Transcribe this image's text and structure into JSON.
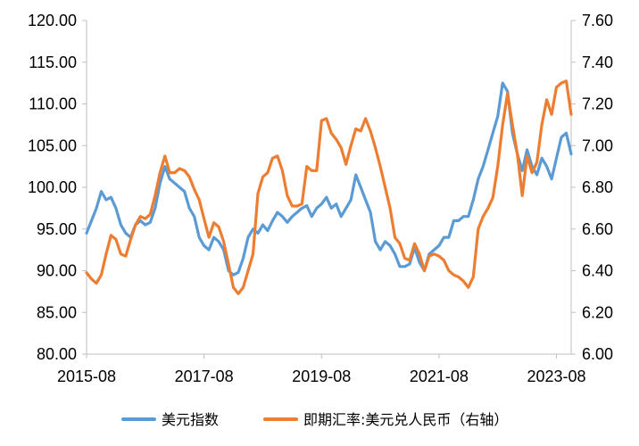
{
  "chart_data": {
    "type": "line",
    "title": "",
    "xlabel": "",
    "ylabel": "",
    "x_tick_labels": [
      "2015-08",
      "2017-08",
      "2019-08",
      "2021-08",
      "2023-08"
    ],
    "y_left": {
      "lim": [
        80,
        120
      ],
      "tick_labels": [
        "80.00",
        "85.00",
        "90.00",
        "95.00",
        "100.00",
        "105.00",
        "110.00",
        "115.00",
        "120.00"
      ]
    },
    "y_right": {
      "lim": [
        6.0,
        7.6
      ],
      "tick_labels": [
        "6.00",
        "6.20",
        "6.40",
        "6.60",
        "6.80",
        "7.00",
        "7.20",
        "7.40",
        "7.60"
      ]
    },
    "grid": false,
    "legend_position": "bottom",
    "series": [
      {
        "name": "美元指数",
        "axis": "left",
        "color": "#5B9BD5",
        "points": [
          [
            "2015-08",
            94.5
          ],
          [
            "2015-09",
            96.0
          ],
          [
            "2015-10",
            97.5
          ],
          [
            "2015-11",
            99.5
          ],
          [
            "2015-12",
            98.5
          ],
          [
            "2016-01",
            98.8
          ],
          [
            "2016-02",
            97.5
          ],
          [
            "2016-03",
            95.5
          ],
          [
            "2016-04",
            94.5
          ],
          [
            "2016-05",
            94.0
          ],
          [
            "2016-06",
            95.5
          ],
          [
            "2016-07",
            96.0
          ],
          [
            "2016-08",
            95.5
          ],
          [
            "2016-09",
            95.8
          ],
          [
            "2016-10",
            97.5
          ],
          [
            "2016-11",
            100.5
          ],
          [
            "2016-12",
            102.5
          ],
          [
            "2017-01",
            101.0
          ],
          [
            "2017-02",
            100.5
          ],
          [
            "2017-03",
            100.0
          ],
          [
            "2017-04",
            99.5
          ],
          [
            "2017-05",
            97.5
          ],
          [
            "2017-06",
            96.5
          ],
          [
            "2017-07",
            94.0
          ],
          [
            "2017-08",
            93.0
          ],
          [
            "2017-09",
            92.5
          ],
          [
            "2017-10",
            94.0
          ],
          [
            "2017-11",
            93.5
          ],
          [
            "2017-12",
            92.5
          ],
          [
            "2018-01",
            90.0
          ],
          [
            "2018-02",
            89.5
          ],
          [
            "2018-03",
            89.8
          ],
          [
            "2018-04",
            91.5
          ],
          [
            "2018-05",
            94.0
          ],
          [
            "2018-06",
            95.0
          ],
          [
            "2018-07",
            94.5
          ],
          [
            "2018-08",
            95.5
          ],
          [
            "2018-09",
            94.8
          ],
          [
            "2018-10",
            96.0
          ],
          [
            "2018-11",
            97.0
          ],
          [
            "2018-12",
            96.5
          ],
          [
            "2019-01",
            95.8
          ],
          [
            "2019-02",
            96.5
          ],
          [
            "2019-03",
            97.0
          ],
          [
            "2019-04",
            97.5
          ],
          [
            "2019-05",
            97.8
          ],
          [
            "2019-06",
            96.5
          ],
          [
            "2019-07",
            97.5
          ],
          [
            "2019-08",
            98.0
          ],
          [
            "2019-09",
            98.8
          ],
          [
            "2019-10",
            97.5
          ],
          [
            "2019-11",
            98.0
          ],
          [
            "2019-12",
            96.5
          ],
          [
            "2020-01",
            97.5
          ],
          [
            "2020-02",
            98.5
          ],
          [
            "2020-03",
            101.5
          ],
          [
            "2020-04",
            100.0
          ],
          [
            "2020-05",
            98.5
          ],
          [
            "2020-06",
            97.0
          ],
          [
            "2020-07",
            93.5
          ],
          [
            "2020-08",
            92.5
          ],
          [
            "2020-09",
            93.5
          ],
          [
            "2020-10",
            93.0
          ],
          [
            "2020-11",
            92.0
          ],
          [
            "2020-12",
            90.5
          ],
          [
            "2021-01",
            90.5
          ],
          [
            "2021-02",
            90.8
          ],
          [
            "2021-03",
            92.8
          ],
          [
            "2021-04",
            91.0
          ],
          [
            "2021-05",
            90.0
          ],
          [
            "2021-06",
            92.0
          ],
          [
            "2021-07",
            92.5
          ],
          [
            "2021-08",
            93.0
          ],
          [
            "2021-09",
            94.0
          ],
          [
            "2021-10",
            94.0
          ],
          [
            "2021-11",
            96.0
          ],
          [
            "2021-12",
            96.0
          ],
          [
            "2022-01",
            96.5
          ],
          [
            "2022-02",
            96.5
          ],
          [
            "2022-03",
            98.5
          ],
          [
            "2022-04",
            101.0
          ],
          [
            "2022-05",
            102.5
          ],
          [
            "2022-06",
            104.5
          ],
          [
            "2022-07",
            106.5
          ],
          [
            "2022-08",
            108.5
          ],
          [
            "2022-09",
            112.5
          ],
          [
            "2022-10",
            111.5
          ],
          [
            "2022-11",
            106.5
          ],
          [
            "2022-12",
            104.0
          ],
          [
            "2023-01",
            102.0
          ],
          [
            "2023-02",
            104.5
          ],
          [
            "2023-03",
            102.5
          ],
          [
            "2023-04",
            101.5
          ],
          [
            "2023-05",
            103.5
          ],
          [
            "2023-06",
            102.5
          ],
          [
            "2023-07",
            101.0
          ],
          [
            "2023-08",
            103.5
          ],
          [
            "2023-09",
            106.0
          ],
          [
            "2023-10",
            106.5
          ],
          [
            "2023-11",
            104.0
          ]
        ]
      },
      {
        "name": "即期汇率:美元兑人民币（右轴）",
        "axis": "right",
        "color": "#ED7D31",
        "points": [
          [
            "2015-08",
            6.39
          ],
          [
            "2015-09",
            6.36
          ],
          [
            "2015-10",
            6.34
          ],
          [
            "2015-11",
            6.38
          ],
          [
            "2015-12",
            6.48
          ],
          [
            "2016-01",
            6.57
          ],
          [
            "2016-02",
            6.55
          ],
          [
            "2016-03",
            6.48
          ],
          [
            "2016-04",
            6.47
          ],
          [
            "2016-05",
            6.55
          ],
          [
            "2016-06",
            6.62
          ],
          [
            "2016-07",
            6.66
          ],
          [
            "2016-08",
            6.65
          ],
          [
            "2016-09",
            6.67
          ],
          [
            "2016-10",
            6.76
          ],
          [
            "2016-11",
            6.87
          ],
          [
            "2016-12",
            6.95
          ],
          [
            "2017-01",
            6.87
          ],
          [
            "2017-02",
            6.87
          ],
          [
            "2017-03",
            6.89
          ],
          [
            "2017-04",
            6.88
          ],
          [
            "2017-05",
            6.85
          ],
          [
            "2017-06",
            6.79
          ],
          [
            "2017-07",
            6.74
          ],
          [
            "2017-08",
            6.65
          ],
          [
            "2017-09",
            6.56
          ],
          [
            "2017-10",
            6.63
          ],
          [
            "2017-11",
            6.61
          ],
          [
            "2017-12",
            6.54
          ],
          [
            "2018-01",
            6.43
          ],
          [
            "2018-02",
            6.32
          ],
          [
            "2018-03",
            6.29
          ],
          [
            "2018-04",
            6.32
          ],
          [
            "2018-05",
            6.4
          ],
          [
            "2018-06",
            6.48
          ],
          [
            "2018-07",
            6.77
          ],
          [
            "2018-08",
            6.85
          ],
          [
            "2018-09",
            6.87
          ],
          [
            "2018-10",
            6.94
          ],
          [
            "2018-11",
            6.95
          ],
          [
            "2018-12",
            6.88
          ],
          [
            "2019-01",
            6.76
          ],
          [
            "2019-02",
            6.71
          ],
          [
            "2019-03",
            6.71
          ],
          [
            "2019-04",
            6.72
          ],
          [
            "2019-05",
            6.9
          ],
          [
            "2019-06",
            6.88
          ],
          [
            "2019-07",
            6.88
          ],
          [
            "2019-08",
            7.12
          ],
          [
            "2019-09",
            7.13
          ],
          [
            "2019-10",
            7.06
          ],
          [
            "2019-11",
            7.03
          ],
          [
            "2019-12",
            6.99
          ],
          [
            "2020-01",
            6.91
          ],
          [
            "2020-02",
            7.0
          ],
          [
            "2020-03",
            7.08
          ],
          [
            "2020-04",
            7.07
          ],
          [
            "2020-05",
            7.13
          ],
          [
            "2020-06",
            7.07
          ],
          [
            "2020-07",
            6.99
          ],
          [
            "2020-08",
            6.9
          ],
          [
            "2020-09",
            6.8
          ],
          [
            "2020-10",
            6.7
          ],
          [
            "2020-11",
            6.56
          ],
          [
            "2020-12",
            6.53
          ],
          [
            "2021-01",
            6.46
          ],
          [
            "2021-02",
            6.45
          ],
          [
            "2021-03",
            6.53
          ],
          [
            "2021-04",
            6.48
          ],
          [
            "2021-05",
            6.4
          ],
          [
            "2021-06",
            6.47
          ],
          [
            "2021-07",
            6.48
          ],
          [
            "2021-08",
            6.47
          ],
          [
            "2021-09",
            6.45
          ],
          [
            "2021-10",
            6.4
          ],
          [
            "2021-11",
            6.38
          ],
          [
            "2021-12",
            6.37
          ],
          [
            "2022-01",
            6.35
          ],
          [
            "2022-02",
            6.32
          ],
          [
            "2022-03",
            6.37
          ],
          [
            "2022-04",
            6.6
          ],
          [
            "2022-05",
            6.66
          ],
          [
            "2022-06",
            6.7
          ],
          [
            "2022-07",
            6.75
          ],
          [
            "2022-08",
            6.9
          ],
          [
            "2022-09",
            7.1
          ],
          [
            "2022-10",
            7.25
          ],
          [
            "2022-11",
            7.1
          ],
          [
            "2022-12",
            6.96
          ],
          [
            "2023-01",
            6.76
          ],
          [
            "2023-02",
            6.95
          ],
          [
            "2023-03",
            6.87
          ],
          [
            "2023-04",
            6.92
          ],
          [
            "2023-05",
            7.1
          ],
          [
            "2023-06",
            7.22
          ],
          [
            "2023-07",
            7.15
          ],
          [
            "2023-08",
            7.28
          ],
          [
            "2023-09",
            7.3
          ],
          [
            "2023-10",
            7.31
          ],
          [
            "2023-11",
            7.15
          ]
        ]
      }
    ]
  }
}
